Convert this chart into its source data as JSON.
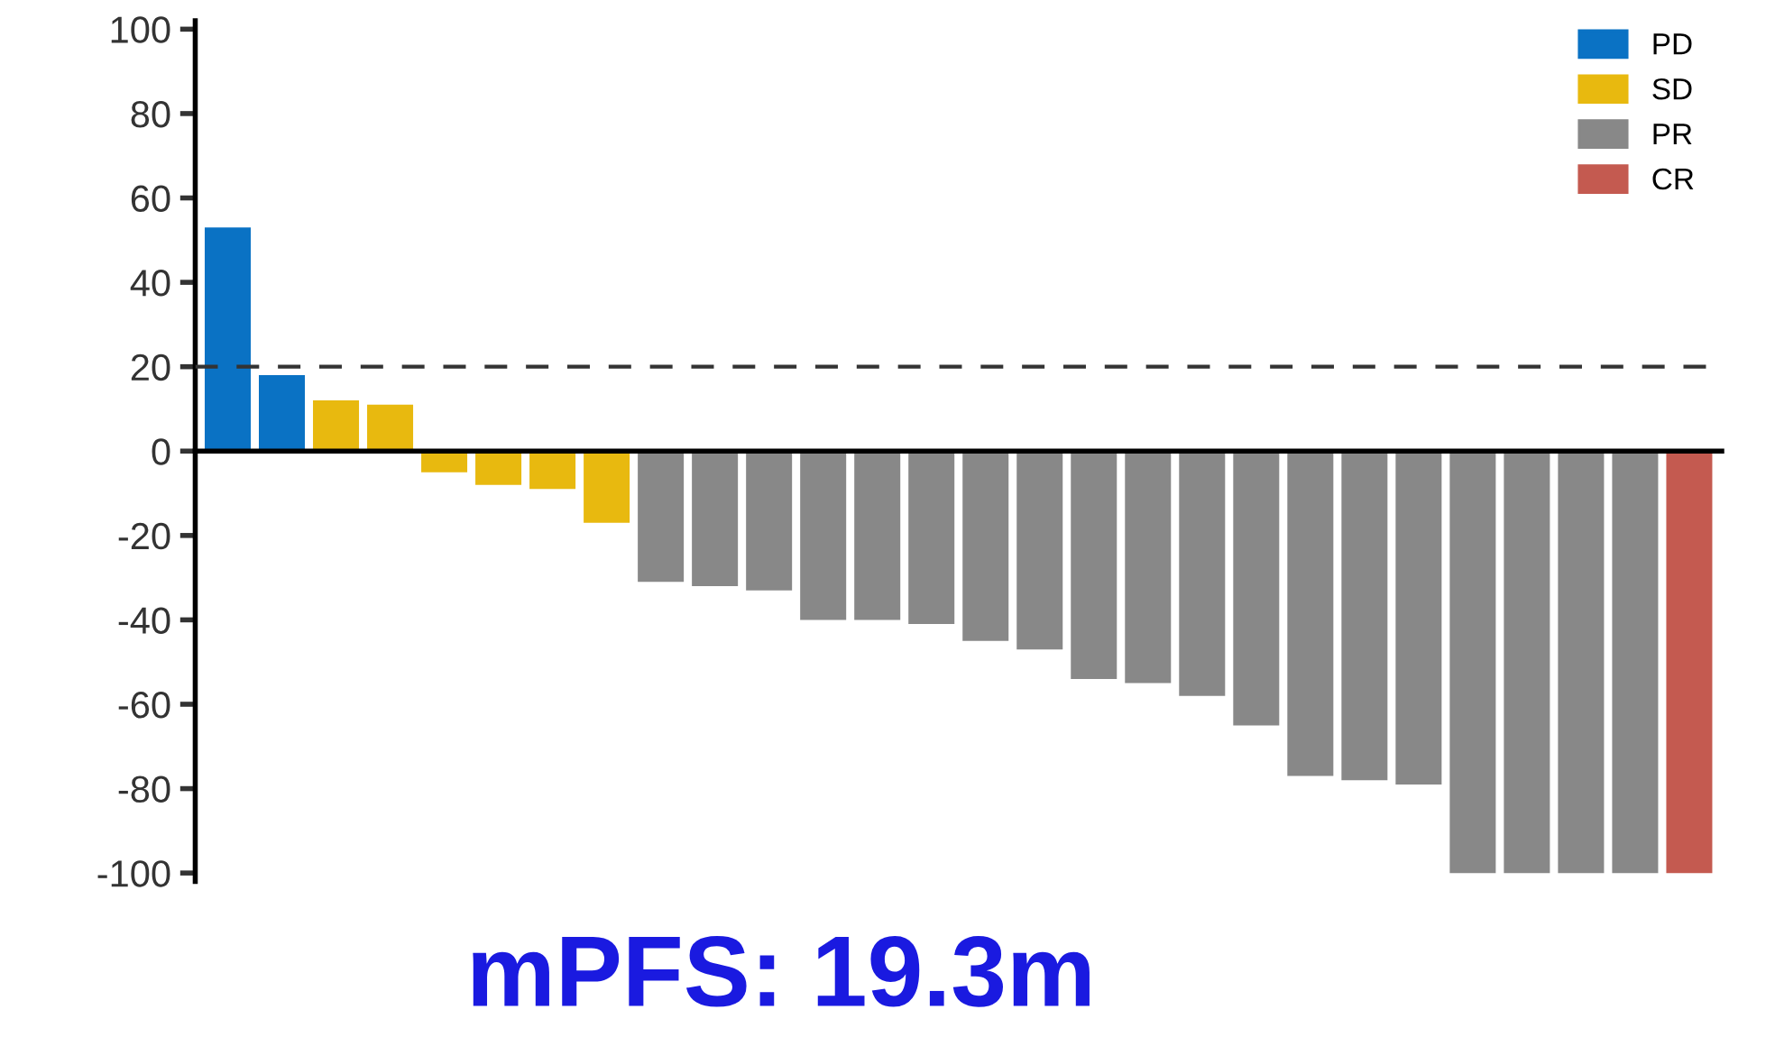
{
  "chart_data": {
    "type": "bar",
    "categories": [
      null,
      null,
      null,
      null,
      null,
      null,
      null,
      null,
      null,
      null,
      null,
      null,
      null,
      null,
      null,
      null,
      null,
      null,
      null,
      null,
      null,
      null,
      null,
      null,
      null,
      null,
      null,
      null
    ],
    "series": [
      {
        "name": "PD",
        "color": "#0a72c4",
        "values": [
          53,
          18,
          null,
          null,
          null,
          null,
          null,
          null,
          null,
          null,
          null,
          null,
          null,
          null,
          null,
          null,
          null,
          null,
          null,
          null,
          null,
          null,
          null,
          null,
          null,
          null,
          null,
          null
        ]
      },
      {
        "name": "SD",
        "color": "#e8b90f",
        "values": [
          null,
          null,
          12,
          11,
          -5,
          -8,
          -9,
          -17,
          null,
          null,
          null,
          null,
          null,
          null,
          null,
          null,
          null,
          null,
          null,
          null,
          null,
          null,
          null,
          null,
          null,
          null,
          null,
          null
        ]
      },
      {
        "name": "PR",
        "color": "#888888",
        "values": [
          null,
          null,
          null,
          null,
          null,
          null,
          null,
          null,
          -31,
          -32,
          -33,
          -40,
          -40,
          -41,
          -45,
          -47,
          -54,
          -55,
          -58,
          -65,
          -77,
          -78,
          -79,
          -100,
          -100,
          -100,
          -100,
          null
        ]
      },
      {
        "name": "CR",
        "color": "#c45a50",
        "values": [
          null,
          null,
          null,
          null,
          null,
          null,
          null,
          null,
          null,
          null,
          null,
          null,
          null,
          null,
          null,
          null,
          null,
          null,
          null,
          null,
          null,
          null,
          null,
          null,
          null,
          null,
          null,
          -100
        ]
      }
    ],
    "ylim": [
      -102,
      102
    ],
    "yticks": [
      -100,
      -80,
      -60,
      -40,
      -20,
      0,
      20,
      40,
      60,
      80,
      100
    ],
    "ref_lines": [
      {
        "axis": "y",
        "value": 20,
        "line_style": "dashed",
        "color": "#333333"
      }
    ],
    "legend": "top right",
    "grid": false,
    "annotations": [
      "mPFS: 19.3m"
    ]
  }
}
